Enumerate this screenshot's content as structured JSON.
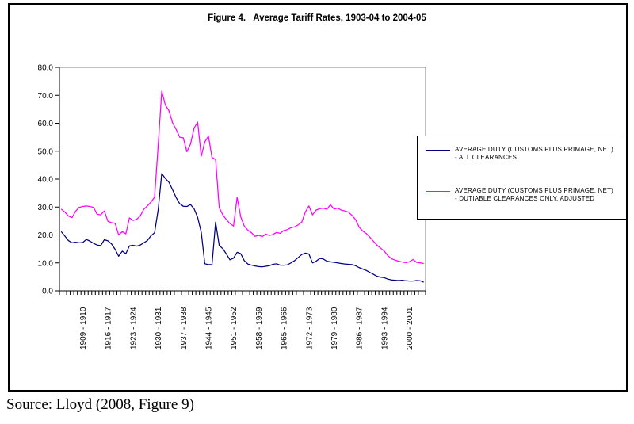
{
  "source_note": "Source: Lloyd (2008, Figure 9)",
  "chart_data": {
    "type": "line",
    "title": "Figure 4.   Average Tariff Rates, 1903-04 to 2004-05",
    "xlabel": "",
    "ylabel": "",
    "ylim": [
      0,
      80
    ],
    "grid": "top-line-only",
    "legend_position": "right-overlay",
    "x_axis": {
      "period": "1903-04 to 2004-05",
      "n_points": 102,
      "tick_labels": [
        "1909 - 1910",
        "1916 - 1917",
        "1923 - 1924",
        "1930 - 1931",
        "1937 - 1938",
        "1944 - 1945",
        "1951 - 1952",
        "1958 - 1959",
        "1965 - 1966",
        "1972 - 1973",
        "1979 - 1980",
        "1986 - 1987",
        "1993 - 1994",
        "2000 - 2001"
      ],
      "tick_indices": [
        6,
        13,
        20,
        27,
        34,
        41,
        48,
        55,
        62,
        69,
        76,
        83,
        90,
        97
      ]
    },
    "y_axis": {
      "tick_labels": [
        "0.0",
        "10.0",
        "20.0",
        "30.0",
        "40.0",
        "50.0",
        "60.0",
        "70.0",
        "80.0"
      ],
      "tick_values": [
        0,
        10,
        20,
        30,
        40,
        50,
        60,
        70,
        80
      ]
    },
    "series": [
      {
        "name": "AVERAGE DUTY (CUSTOMS PLUS PRIMAGE, NET) - ALL CLEARANCES",
        "color": "#000080",
        "values": [
          21.2,
          19.6,
          18.0,
          17.2,
          17.4,
          17.2,
          17.3,
          18.4,
          17.8,
          17.0,
          16.4,
          16.2,
          18.3,
          17.9,
          16.8,
          14.9,
          12.4,
          14.2,
          13.3,
          16.1,
          16.3,
          16.0,
          16.4,
          17.2,
          18.0,
          19.7,
          20.8,
          29.0,
          42.0,
          40.2,
          38.9,
          36.2,
          33.4,
          31.2,
          30.3,
          30.2,
          30.9,
          29.4,
          26.3,
          21.0,
          9.7,
          9.4,
          9.4,
          24.6,
          16.3,
          15.1,
          13.2,
          11.1,
          11.7,
          13.8,
          13.3,
          10.8,
          9.6,
          9.2,
          8.9,
          8.7,
          8.6,
          8.8,
          9.0,
          9.5,
          9.7,
          9.2,
          9.2,
          9.3,
          10.0,
          10.8,
          11.9,
          13.0,
          13.5,
          13.2,
          10.0,
          10.6,
          11.6,
          11.4,
          10.6,
          10.4,
          10.2,
          10.0,
          9.8,
          9.6,
          9.5,
          9.4,
          9.0,
          8.3,
          7.8,
          7.3,
          6.6,
          5.9,
          5.2,
          4.9,
          4.7,
          4.2,
          3.9,
          3.8,
          3.7,
          3.8,
          3.6,
          3.5,
          3.5,
          3.7,
          3.6,
          3.1
        ]
      },
      {
        "name": "AVERAGE DUTY (CUSTOMS PLUS PRIMAGE, NET) - DUTIABLE CLEARANCES ONLY, ADJUSTED",
        "color": "#FF00FF",
        "values": [
          29.3,
          28.2,
          26.8,
          26.2,
          28.5,
          29.9,
          30.2,
          30.4,
          30.2,
          29.9,
          27.4,
          27.2,
          28.6,
          24.9,
          24.4,
          24.2,
          20.0,
          21.2,
          20.4,
          26.1,
          25.2,
          25.6,
          26.8,
          29.2,
          30.4,
          31.8,
          33.5,
          52.0,
          71.5,
          66.5,
          64.5,
          60.2,
          57.8,
          55.0,
          54.8,
          49.8,
          52.5,
          58.2,
          60.4,
          48.2,
          53.3,
          55.4,
          47.8,
          47.0,
          29.9,
          27.2,
          25.5,
          24.1,
          23.2,
          33.5,
          26.5,
          23.2,
          21.7,
          20.8,
          19.5,
          19.9,
          19.4,
          20.3,
          19.8,
          20.2,
          20.9,
          20.6,
          21.6,
          21.9,
          22.6,
          22.9,
          23.6,
          24.6,
          28.2,
          30.4,
          27.2,
          28.9,
          29.4,
          29.6,
          29.2,
          30.8,
          29.3,
          29.6,
          28.9,
          28.6,
          28.2,
          27.0,
          25.5,
          22.8,
          21.4,
          20.5,
          19.2,
          17.7,
          16.3,
          15.3,
          14.2,
          12.6,
          11.5,
          11.0,
          10.6,
          10.3,
          10.1,
          10.4,
          11.2,
          10.2,
          10.0,
          9.8
        ]
      }
    ]
  }
}
